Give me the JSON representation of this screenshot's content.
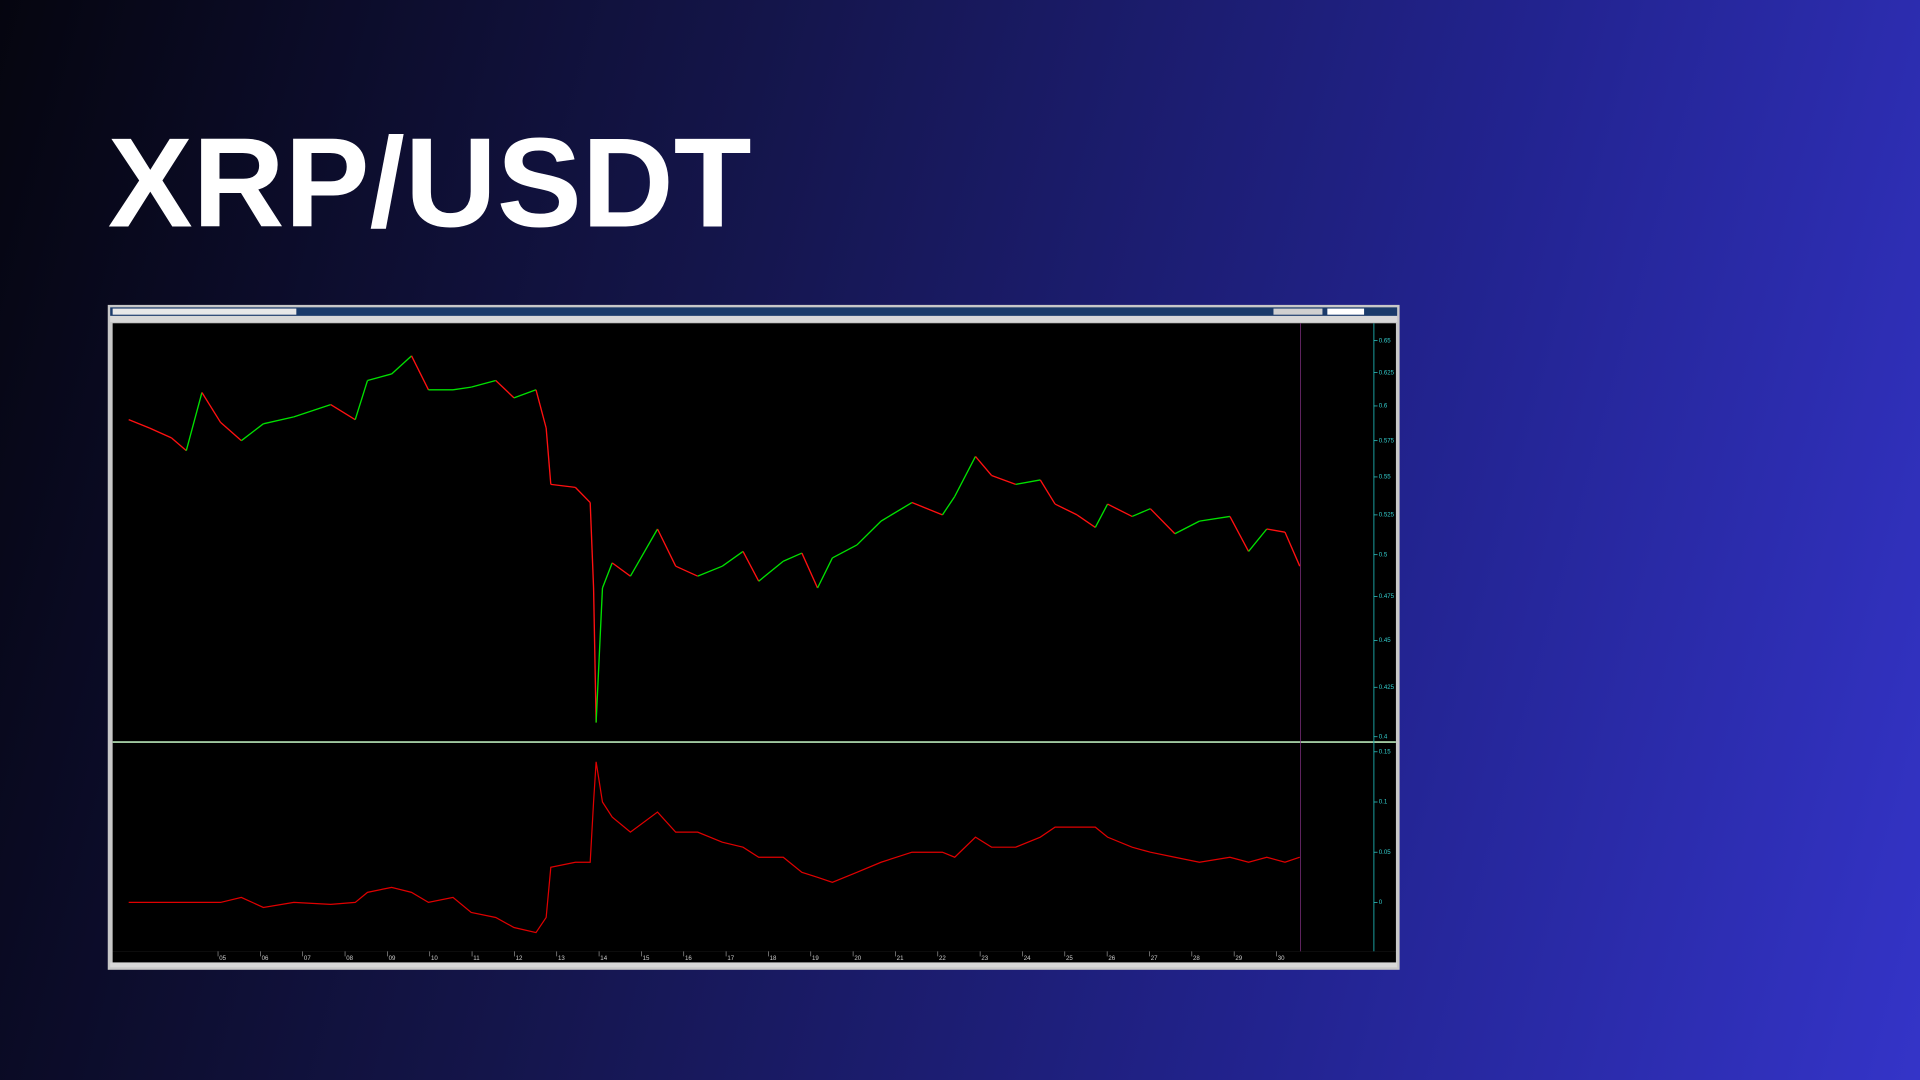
{
  "title": "XRP/USDT",
  "chart_data": [
    {
      "type": "line",
      "log": true,
      "up_color": "#00e000",
      "down_color": "#ff1010",
      "x": [
        2.89,
        3.38,
        3.9,
        4.25,
        4.62,
        5.06,
        5.55,
        6.07,
        6.79,
        7.66,
        8.24,
        8.53,
        9.1,
        9.57,
        9.97,
        10.55,
        10.98,
        11.56,
        11.99,
        12.51,
        12.75,
        12.86,
        13.44,
        13.79,
        13.87,
        13.93,
        14.08,
        14.31,
        14.74,
        15.38,
        15.81,
        16.33,
        16.91,
        17.4,
        17.77,
        18.35,
        18.79,
        19.16,
        19.51,
        20.09,
        20.66,
        21.39,
        22.11,
        22.4,
        22.89,
        23.27,
        23.84,
        24.42,
        24.77,
        25.29,
        25.72,
        26.01,
        26.59,
        27.02,
        27.6,
        28.18,
        28.9,
        29.34,
        29.77,
        30.2,
        30.55
      ],
      "values": [
        0.59,
        0.584,
        0.577,
        0.568,
        0.61,
        0.588,
        0.575,
        0.587,
        0.592,
        0.601,
        0.59,
        0.619,
        0.624,
        0.638,
        0.612,
        0.612,
        0.614,
        0.619,
        0.606,
        0.612,
        0.584,
        0.545,
        0.543,
        0.533,
        0.48,
        0.407,
        0.48,
        0.495,
        0.487,
        0.516,
        0.493,
        0.487,
        0.493,
        0.502,
        0.484,
        0.496,
        0.501,
        0.48,
        0.498,
        0.506,
        0.521,
        0.533,
        0.525,
        0.537,
        0.564,
        0.551,
        0.545,
        0.548,
        0.532,
        0.525,
        0.517,
        0.532,
        0.524,
        0.529,
        0.513,
        0.521,
        0.524,
        0.502,
        0.516,
        0.514,
        0.493
      ],
      "xlim": [
        2.54,
        32.3
      ],
      "ylim": [
        0.398,
        0.664
      ],
      "yticks": [
        0.65,
        0.625,
        0.6,
        0.575,
        0.55,
        0.525,
        0.5,
        0.475,
        0.45,
        0.425,
        0.4
      ]
    },
    {
      "type": "line",
      "color": "#e00000",
      "x": [
        2.89,
        3.38,
        3.9,
        4.25,
        4.62,
        5.06,
        5.55,
        6.07,
        6.79,
        7.66,
        8.24,
        8.53,
        9.1,
        9.57,
        9.97,
        10.55,
        10.98,
        11.56,
        11.99,
        12.51,
        12.75,
        12.86,
        13.44,
        13.79,
        13.87,
        13.93,
        14.08,
        14.31,
        14.74,
        15.38,
        15.81,
        16.33,
        16.91,
        17.4,
        17.77,
        18.35,
        18.79,
        19.16,
        19.51,
        20.09,
        20.66,
        21.39,
        22.11,
        22.4,
        22.89,
        23.27,
        23.84,
        24.42,
        24.77,
        25.29,
        25.72,
        26.01,
        26.59,
        27.02,
        27.6,
        28.18,
        28.9,
        29.34,
        29.77,
        30.2,
        30.55
      ],
      "values": [
        0,
        0,
        0,
        0,
        0,
        0,
        0.005,
        -0.005,
        0,
        -0.002,
        0,
        0.01,
        0.015,
        0.01,
        0,
        0.005,
        -0.01,
        -0.015,
        -0.025,
        -0.03,
        -0.015,
        0.035,
        0.04,
        0.04,
        0.1,
        0.14,
        0.1,
        0.085,
        0.07,
        0.09,
        0.07,
        0.07,
        0.06,
        0.055,
        0.045,
        0.045,
        0.03,
        0.025,
        0.02,
        0.03,
        0.04,
        0.05,
        0.05,
        0.045,
        0.065,
        0.055,
        0.055,
        0.065,
        0.075,
        0.075,
        0.075,
        0.065,
        0.055,
        0.05,
        0.045,
        0.04,
        0.045,
        0.04,
        0.045,
        0.04,
        0.045
      ],
      "xlim": [
        2.54,
        32.3
      ],
      "ylim": [
        -0.0476,
        0.1585
      ],
      "yticks": [
        0.15,
        0.1,
        0.05,
        0
      ],
      "xticks": [
        {
          "value": 5,
          "label": "05"
        },
        {
          "value": 6,
          "label": "06"
        },
        {
          "value": 7,
          "label": "07"
        },
        {
          "value": 8,
          "label": "08"
        },
        {
          "value": 9,
          "label": "09"
        },
        10,
        11,
        12,
        13,
        14,
        15,
        16,
        17,
        18,
        19,
        20,
        21,
        22,
        23,
        24,
        25,
        26,
        27,
        28,
        29,
        30
      ]
    }
  ]
}
